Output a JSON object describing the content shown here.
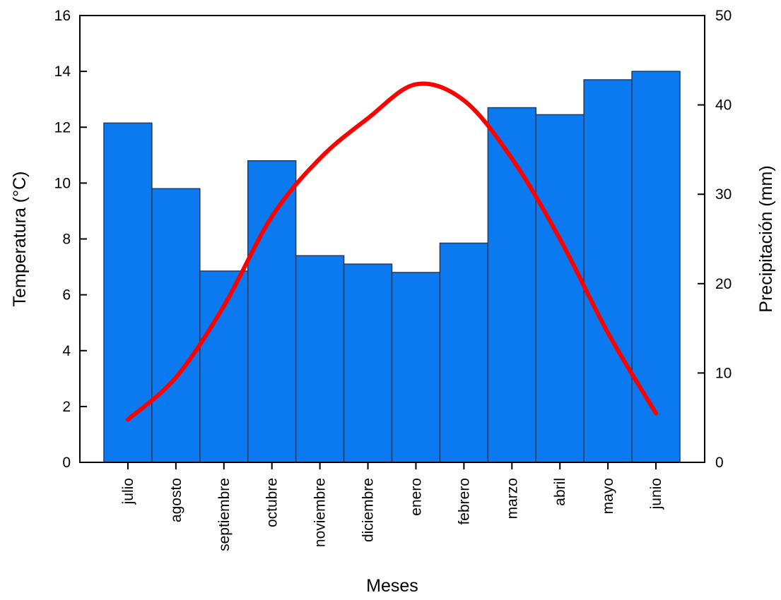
{
  "chart_data": {
    "type": "bar+line",
    "categories": [
      "julio",
      "agosto",
      "septiembre",
      "octubre",
      "noviembre",
      "diciembre",
      "enero",
      "febrero",
      "marzo",
      "abril",
      "mayo",
      "junio"
    ],
    "bars": {
      "axis": "left",
      "values": [
        12.15,
        9.8,
        6.85,
        10.8,
        7.4,
        7.1,
        6.8,
        7.85,
        12.7,
        12.45,
        13.7,
        14.0
      ],
      "color": "#0b79f0",
      "edge_color": "#1a3d6b"
    },
    "line": {
      "axis": "right",
      "values": [
        4.8,
        9.5,
        17.5,
        27.5,
        34.0,
        38.5,
        42.3,
        40.5,
        34.0,
        25.0,
        14.5,
        5.5
      ],
      "color": "#ff0000"
    },
    "xlabel": "Meses",
    "ylabel_left": "Temperatura (°C)",
    "ylabel_right": "Precipitación (mm)",
    "ylim_left": [
      0,
      16
    ],
    "yticks_left": [
      0,
      2,
      4,
      6,
      8,
      10,
      12,
      14,
      16
    ],
    "ylim_right": [
      0,
      50
    ],
    "yticks_right": [
      0,
      10,
      20,
      30,
      40,
      50
    ],
    "grid": false,
    "legend": "none"
  }
}
